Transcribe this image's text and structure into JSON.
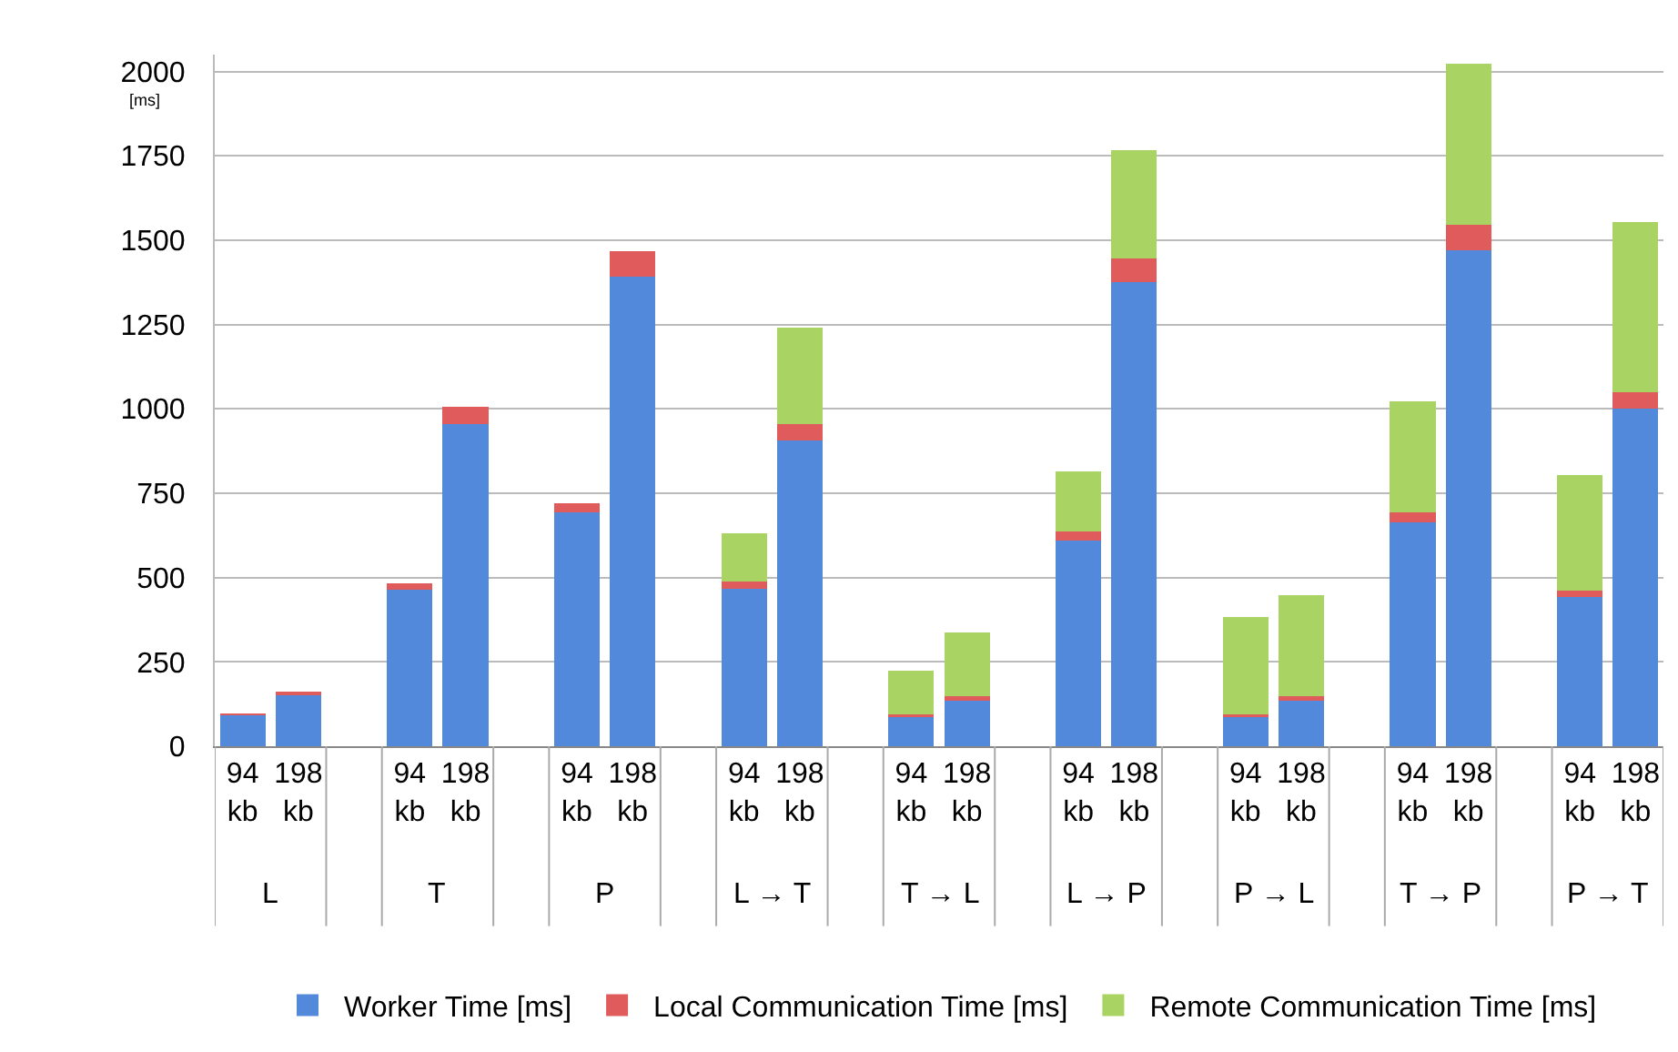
{
  "chart_data": {
    "type": "bar",
    "stacked": true,
    "ylabel": "[ms]",
    "categories": [
      "94 kb",
      "198 kb",
      null,
      "94 kb",
      "198 kb",
      null,
      "94 kb",
      "198 kb",
      null,
      "94 kb",
      "198 kb",
      null,
      "94 kb",
      "198 kb",
      null,
      "94 kb",
      "198 kb",
      null,
      "94 kb",
      "198 kb",
      null,
      "94 kb",
      "198 kb",
      null,
      "94 kb",
      "198 kb"
    ],
    "series": [
      {
        "name": "Worker Time [ms]",
        "color": "#5289da",
        "values": [
          92,
          153,
          null,
          465,
          956,
          null,
          694,
          1393,
          null,
          467,
          907,
          null,
          90,
          140,
          null,
          609,
          1377,
          null,
          90,
          140,
          null,
          663,
          1471,
          null,
          442,
          1001
        ]
      },
      {
        "name": "Local Communication Time [ms]",
        "color": "#e05c5c",
        "values": [
          5,
          10,
          null,
          19,
          50,
          null,
          26,
          74,
          null,
          20,
          49,
          null,
          4,
          9,
          null,
          28,
          68,
          null,
          4,
          9,
          null,
          29,
          75,
          null,
          19,
          48
        ]
      },
      {
        "name": "Remote Communication Time [ms]",
        "color": "#a9d463",
        "values": [
          0,
          0,
          null,
          0,
          0,
          null,
          0,
          0,
          null,
          144,
          286,
          null,
          131,
          188,
          null,
          178,
          321,
          null,
          289,
          300,
          null,
          330,
          477,
          null,
          342,
          505
        ]
      }
    ],
    "annotations": [
      "L",
      "T",
      "P",
      "L → T",
      "T → L",
      "L → P",
      "P → L",
      "T → P",
      "P → T"
    ],
    "ylim": [
      0,
      2050
    ],
    "yticks": [
      0,
      250,
      500,
      750,
      1000,
      1250,
      1500,
      1750,
      2000
    ],
    "grid": "y",
    "legend": "bottom"
  }
}
